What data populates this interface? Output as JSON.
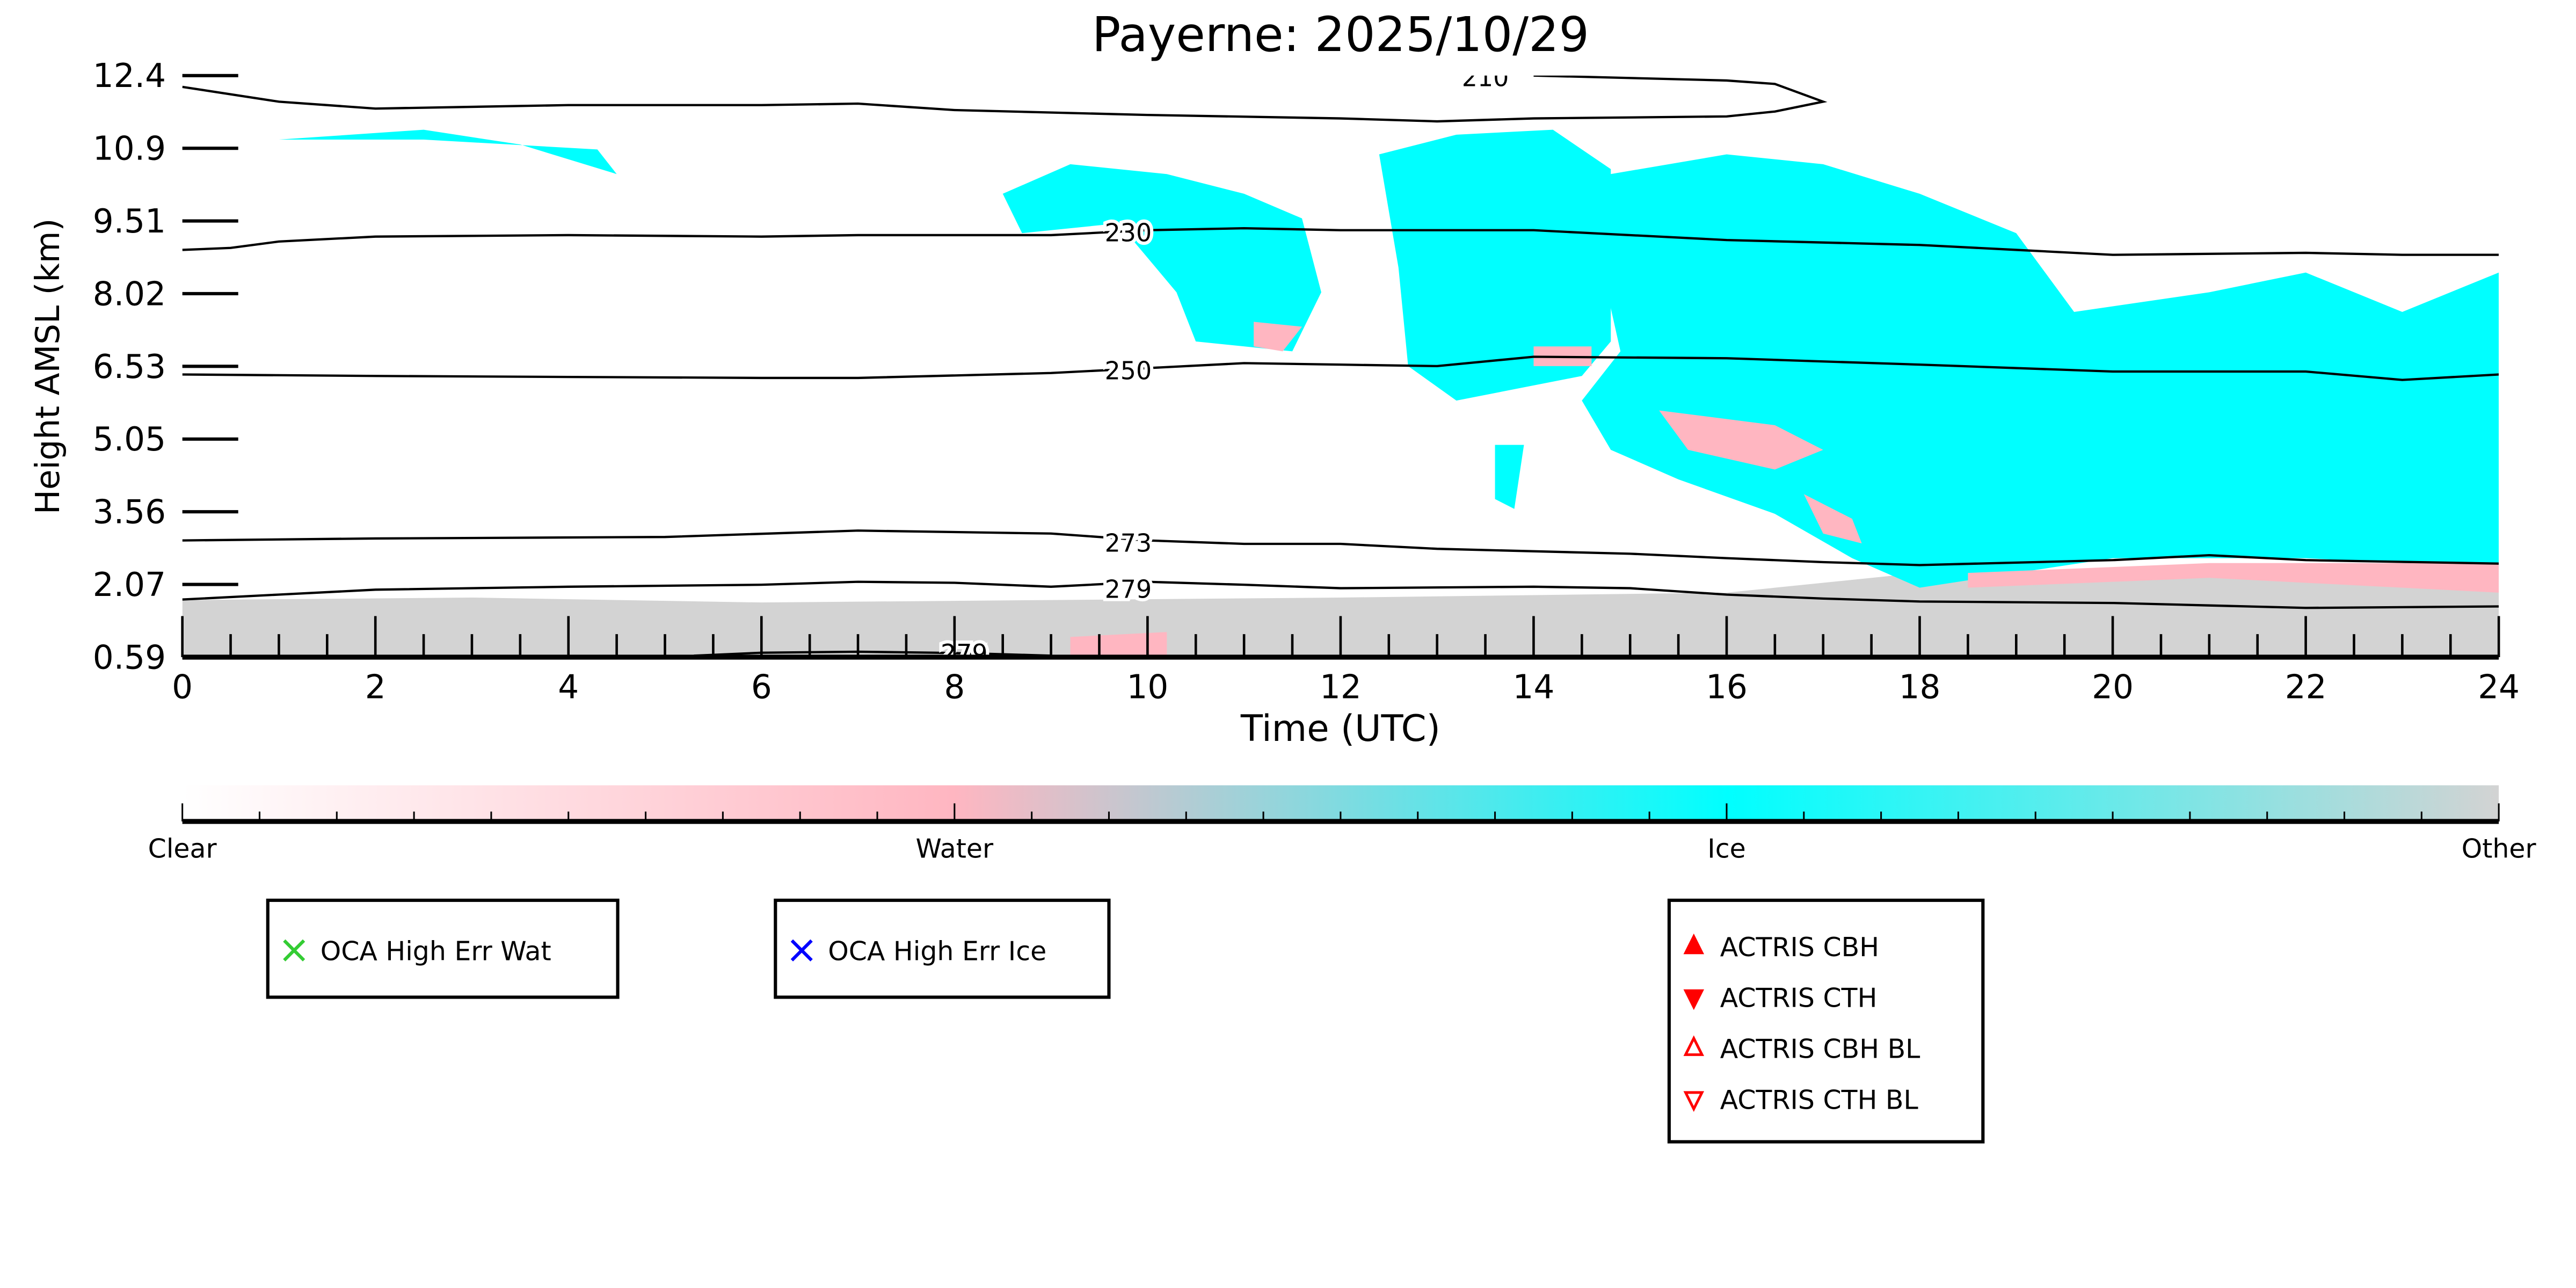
{
  "chart_data": {
    "type": "heatmap",
    "title": "Payerne: 2025/10/29",
    "xlabel": "Time (UTC)",
    "ylabel": "Height AMSL (km)",
    "xlim": [
      0,
      24
    ],
    "ylim": [
      0.59,
      12.4
    ],
    "xticks": [
      "0",
      "2",
      "4",
      "6",
      "8",
      "10",
      "12",
      "14",
      "16",
      "18",
      "20",
      "22",
      "24"
    ],
    "yticks": [
      "0.59",
      "2.07",
      "3.56",
      "5.05",
      "6.53",
      "8.02",
      "9.51",
      "10.9",
      "12.4"
    ],
    "colors": {
      "clear": "#ffffff",
      "water": "#ffb6c1",
      "ice": "#00ffff",
      "other": "#d3d3d3"
    },
    "colorbar": {
      "labels": [
        "Clear",
        "Water",
        "Ice",
        "Other"
      ]
    },
    "regions": [
      {
        "class": "other",
        "points": [
          [
            0,
            0.59
          ],
          [
            0,
            1.75
          ],
          [
            3,
            1.8
          ],
          [
            6,
            1.7
          ],
          [
            9,
            1.75
          ],
          [
            12,
            1.8
          ],
          [
            16,
            1.9
          ],
          [
            18,
            2.3
          ],
          [
            24,
            2.4
          ],
          [
            24,
            0.59
          ]
        ]
      },
      {
        "class": "water",
        "points": [
          [
            9.2,
            0.59
          ],
          [
            9.2,
            1.0
          ],
          [
            10.2,
            1.1
          ],
          [
            10.2,
            0.59
          ]
        ]
      },
      {
        "class": "ice",
        "points": [
          [
            1,
            11.1
          ],
          [
            2.5,
            11.3
          ],
          [
            3.5,
            11
          ],
          [
            4.5,
            10.4
          ],
          [
            4.3,
            10.9
          ],
          [
            2.5,
            11.1
          ]
        ]
      },
      {
        "class": "ice",
        "points": [
          [
            8.5,
            10
          ],
          [
            9.2,
            10.6
          ],
          [
            10.2,
            10.4
          ],
          [
            11,
            10
          ],
          [
            11.6,
            9.5
          ],
          [
            11.8,
            8
          ],
          [
            11.5,
            6.8
          ],
          [
            10.5,
            7
          ],
          [
            10.3,
            8
          ],
          [
            9.7,
            9.4
          ],
          [
            8.7,
            9.2
          ]
        ]
      },
      {
        "class": "ice",
        "points": [
          [
            12.4,
            10.8
          ],
          [
            13.2,
            11.2
          ],
          [
            14.2,
            11.3
          ],
          [
            14.8,
            10.5
          ],
          [
            14.8,
            7
          ],
          [
            14.5,
            6.3
          ],
          [
            13.2,
            5.8
          ],
          [
            12.7,
            6.5
          ],
          [
            12.6,
            8.5
          ]
        ]
      },
      {
        "class": "ice",
        "points": [
          [
            14.5,
            10.3
          ],
          [
            16,
            10.8
          ],
          [
            17,
            10.6
          ],
          [
            18,
            10
          ],
          [
            19,
            9.2
          ],
          [
            19.6,
            7.6
          ],
          [
            21,
            8
          ],
          [
            22,
            8.4
          ],
          [
            23,
            7.6
          ],
          [
            24,
            8.4
          ],
          [
            24,
            2.4
          ],
          [
            22,
            2.6
          ],
          [
            20,
            2.6
          ],
          [
            18,
            2.0
          ],
          [
            17.3,
            2.6
          ],
          [
            16.5,
            3.5
          ],
          [
            15.5,
            4.2
          ],
          [
            14.8,
            4.8
          ],
          [
            14.5,
            5.8
          ],
          [
            14.9,
            6.8
          ]
        ]
      },
      {
        "class": "ice",
        "points": [
          [
            13.6,
            4.9
          ],
          [
            13.9,
            4.9
          ],
          [
            13.8,
            3.6
          ],
          [
            13.6,
            3.8
          ]
        ]
      },
      {
        "class": "water",
        "points": [
          [
            15.3,
            5.6
          ],
          [
            16.5,
            5.3
          ],
          [
            17,
            4.8
          ],
          [
            16.5,
            4.4
          ],
          [
            15.6,
            4.8
          ]
        ]
      },
      {
        "class": "water",
        "points": [
          [
            16.8,
            3.9
          ],
          [
            17.3,
            3.4
          ],
          [
            17.4,
            2.9
          ],
          [
            17,
            3.1
          ]
        ]
      },
      {
        "class": "water",
        "points": [
          [
            18.5,
            2.3
          ],
          [
            21,
            2.5
          ],
          [
            24,
            2.5
          ],
          [
            24,
            1.9
          ],
          [
            21,
            2.2
          ],
          [
            18.5,
            2.0
          ]
        ]
      },
      {
        "class": "water",
        "points": [
          [
            11.1,
            7.4
          ],
          [
            11.6,
            7.3
          ],
          [
            11.4,
            6.8
          ],
          [
            11.1,
            6.9
          ]
        ]
      },
      {
        "class": "water",
        "points": [
          [
            14,
            6.9
          ],
          [
            14.6,
            6.9
          ],
          [
            14.6,
            6.5
          ],
          [
            14,
            6.5
          ]
        ]
      }
    ],
    "contours": [
      {
        "label": "210",
        "label_at": [
          13.5,
          12.35
        ],
        "points": [
          [
            0,
            12.17
          ],
          [
            1,
            11.87
          ],
          [
            2,
            11.73
          ],
          [
            4,
            11.8
          ],
          [
            6,
            11.8
          ],
          [
            7,
            11.83
          ],
          [
            8,
            11.7
          ],
          [
            10,
            11.6
          ],
          [
            12,
            11.53
          ],
          [
            13,
            11.47
          ],
          [
            14,
            11.53
          ],
          [
            16,
            11.57
          ],
          [
            16.5,
            11.67
          ],
          [
            17,
            11.87
          ],
          [
            16.5,
            12.23
          ],
          [
            16,
            12.3
          ],
          [
            14,
            12.4
          ]
        ]
      },
      {
        "label": "230",
        "label_at": [
          9.8,
          9.2
        ],
        "points": [
          [
            0,
            8.86
          ],
          [
            0.5,
            8.9
          ],
          [
            1,
            9.03
          ],
          [
            2,
            9.13
          ],
          [
            4,
            9.16
          ],
          [
            6,
            9.13
          ],
          [
            7,
            9.16
          ],
          [
            9,
            9.16
          ],
          [
            10,
            9.26
          ],
          [
            11,
            9.3
          ],
          [
            12,
            9.26
          ],
          [
            14,
            9.26
          ],
          [
            16,
            9.06
          ],
          [
            18,
            8.96
          ],
          [
            19,
            8.86
          ],
          [
            20,
            8.76
          ],
          [
            22,
            8.8
          ],
          [
            23,
            8.76
          ],
          [
            24,
            8.76
          ]
        ]
      },
      {
        "label": "250",
        "label_at": [
          9.8,
          6.4
        ],
        "points": [
          [
            0,
            6.33
          ],
          [
            2,
            6.3
          ],
          [
            4,
            6.28
          ],
          [
            6,
            6.26
          ],
          [
            7,
            6.26
          ],
          [
            9,
            6.36
          ],
          [
            10,
            6.46
          ],
          [
            11,
            6.56
          ],
          [
            12,
            6.53
          ],
          [
            13,
            6.5
          ],
          [
            14,
            6.69
          ],
          [
            16,
            6.66
          ],
          [
            18,
            6.53
          ],
          [
            20,
            6.39
          ],
          [
            22,
            6.39
          ],
          [
            23,
            6.22
          ],
          [
            24,
            6.33
          ]
        ]
      },
      {
        "label": "273",
        "label_at": [
          9.8,
          2.9
        ],
        "points": [
          [
            0,
            2.96
          ],
          [
            2,
            3.0
          ],
          [
            5,
            3.03
          ],
          [
            7,
            3.16
          ],
          [
            9,
            3.1
          ],
          [
            10,
            2.96
          ],
          [
            11,
            2.89
          ],
          [
            12,
            2.89
          ],
          [
            13,
            2.79
          ],
          [
            15,
            2.69
          ],
          [
            16,
            2.6
          ],
          [
            17,
            2.52
          ],
          [
            18,
            2.46
          ],
          [
            20,
            2.56
          ],
          [
            21,
            2.66
          ],
          [
            22,
            2.56
          ],
          [
            24,
            2.49
          ]
        ]
      },
      {
        "label": "279",
        "label_at": [
          9.8,
          1.96
        ],
        "points": [
          [
            0,
            1.76
          ],
          [
            1,
            1.86
          ],
          [
            2,
            1.96
          ],
          [
            4,
            2.02
          ],
          [
            6,
            2.06
          ],
          [
            7,
            2.12
          ],
          [
            8,
            2.1
          ],
          [
            9,
            2.02
          ],
          [
            10,
            2.12
          ],
          [
            11,
            2.06
          ],
          [
            12,
            1.99
          ],
          [
            14,
            2.02
          ],
          [
            15,
            1.99
          ],
          [
            16,
            1.86
          ],
          [
            17,
            1.78
          ],
          [
            18,
            1.72
          ],
          [
            20,
            1.69
          ],
          [
            21,
            1.64
          ],
          [
            22,
            1.59
          ],
          [
            24,
            1.62
          ]
        ]
      },
      {
        "label": "279",
        "label_at": [
          8.1,
          0.66
        ],
        "points": [
          [
            5.3,
            0.62
          ],
          [
            6,
            0.68
          ],
          [
            7,
            0.7
          ],
          [
            7.8,
            0.68
          ],
          [
            8.3,
            0.66
          ],
          [
            9,
            0.62
          ]
        ]
      }
    ],
    "legends": [
      {
        "items": [
          {
            "label": "OCA High Err Wat",
            "marker": "x",
            "color": "#33cc33"
          }
        ]
      },
      {
        "items": [
          {
            "label": "OCA High Err Ice",
            "marker": "x",
            "color": "#0000ff"
          }
        ]
      },
      {
        "items": [
          {
            "label": "ACTRIS CBH",
            "marker": "triangle-up-filled",
            "color": "#ff0000"
          },
          {
            "label": "ACTRIS CTH",
            "marker": "triangle-down-filled",
            "color": "#ff0000"
          },
          {
            "label": "ACTRIS CBH BL",
            "marker": "triangle-up-open",
            "color": "#ff0000"
          },
          {
            "label": "ACTRIS CTH BL",
            "marker": "triangle-down-open",
            "color": "#ff0000"
          }
        ]
      }
    ]
  }
}
